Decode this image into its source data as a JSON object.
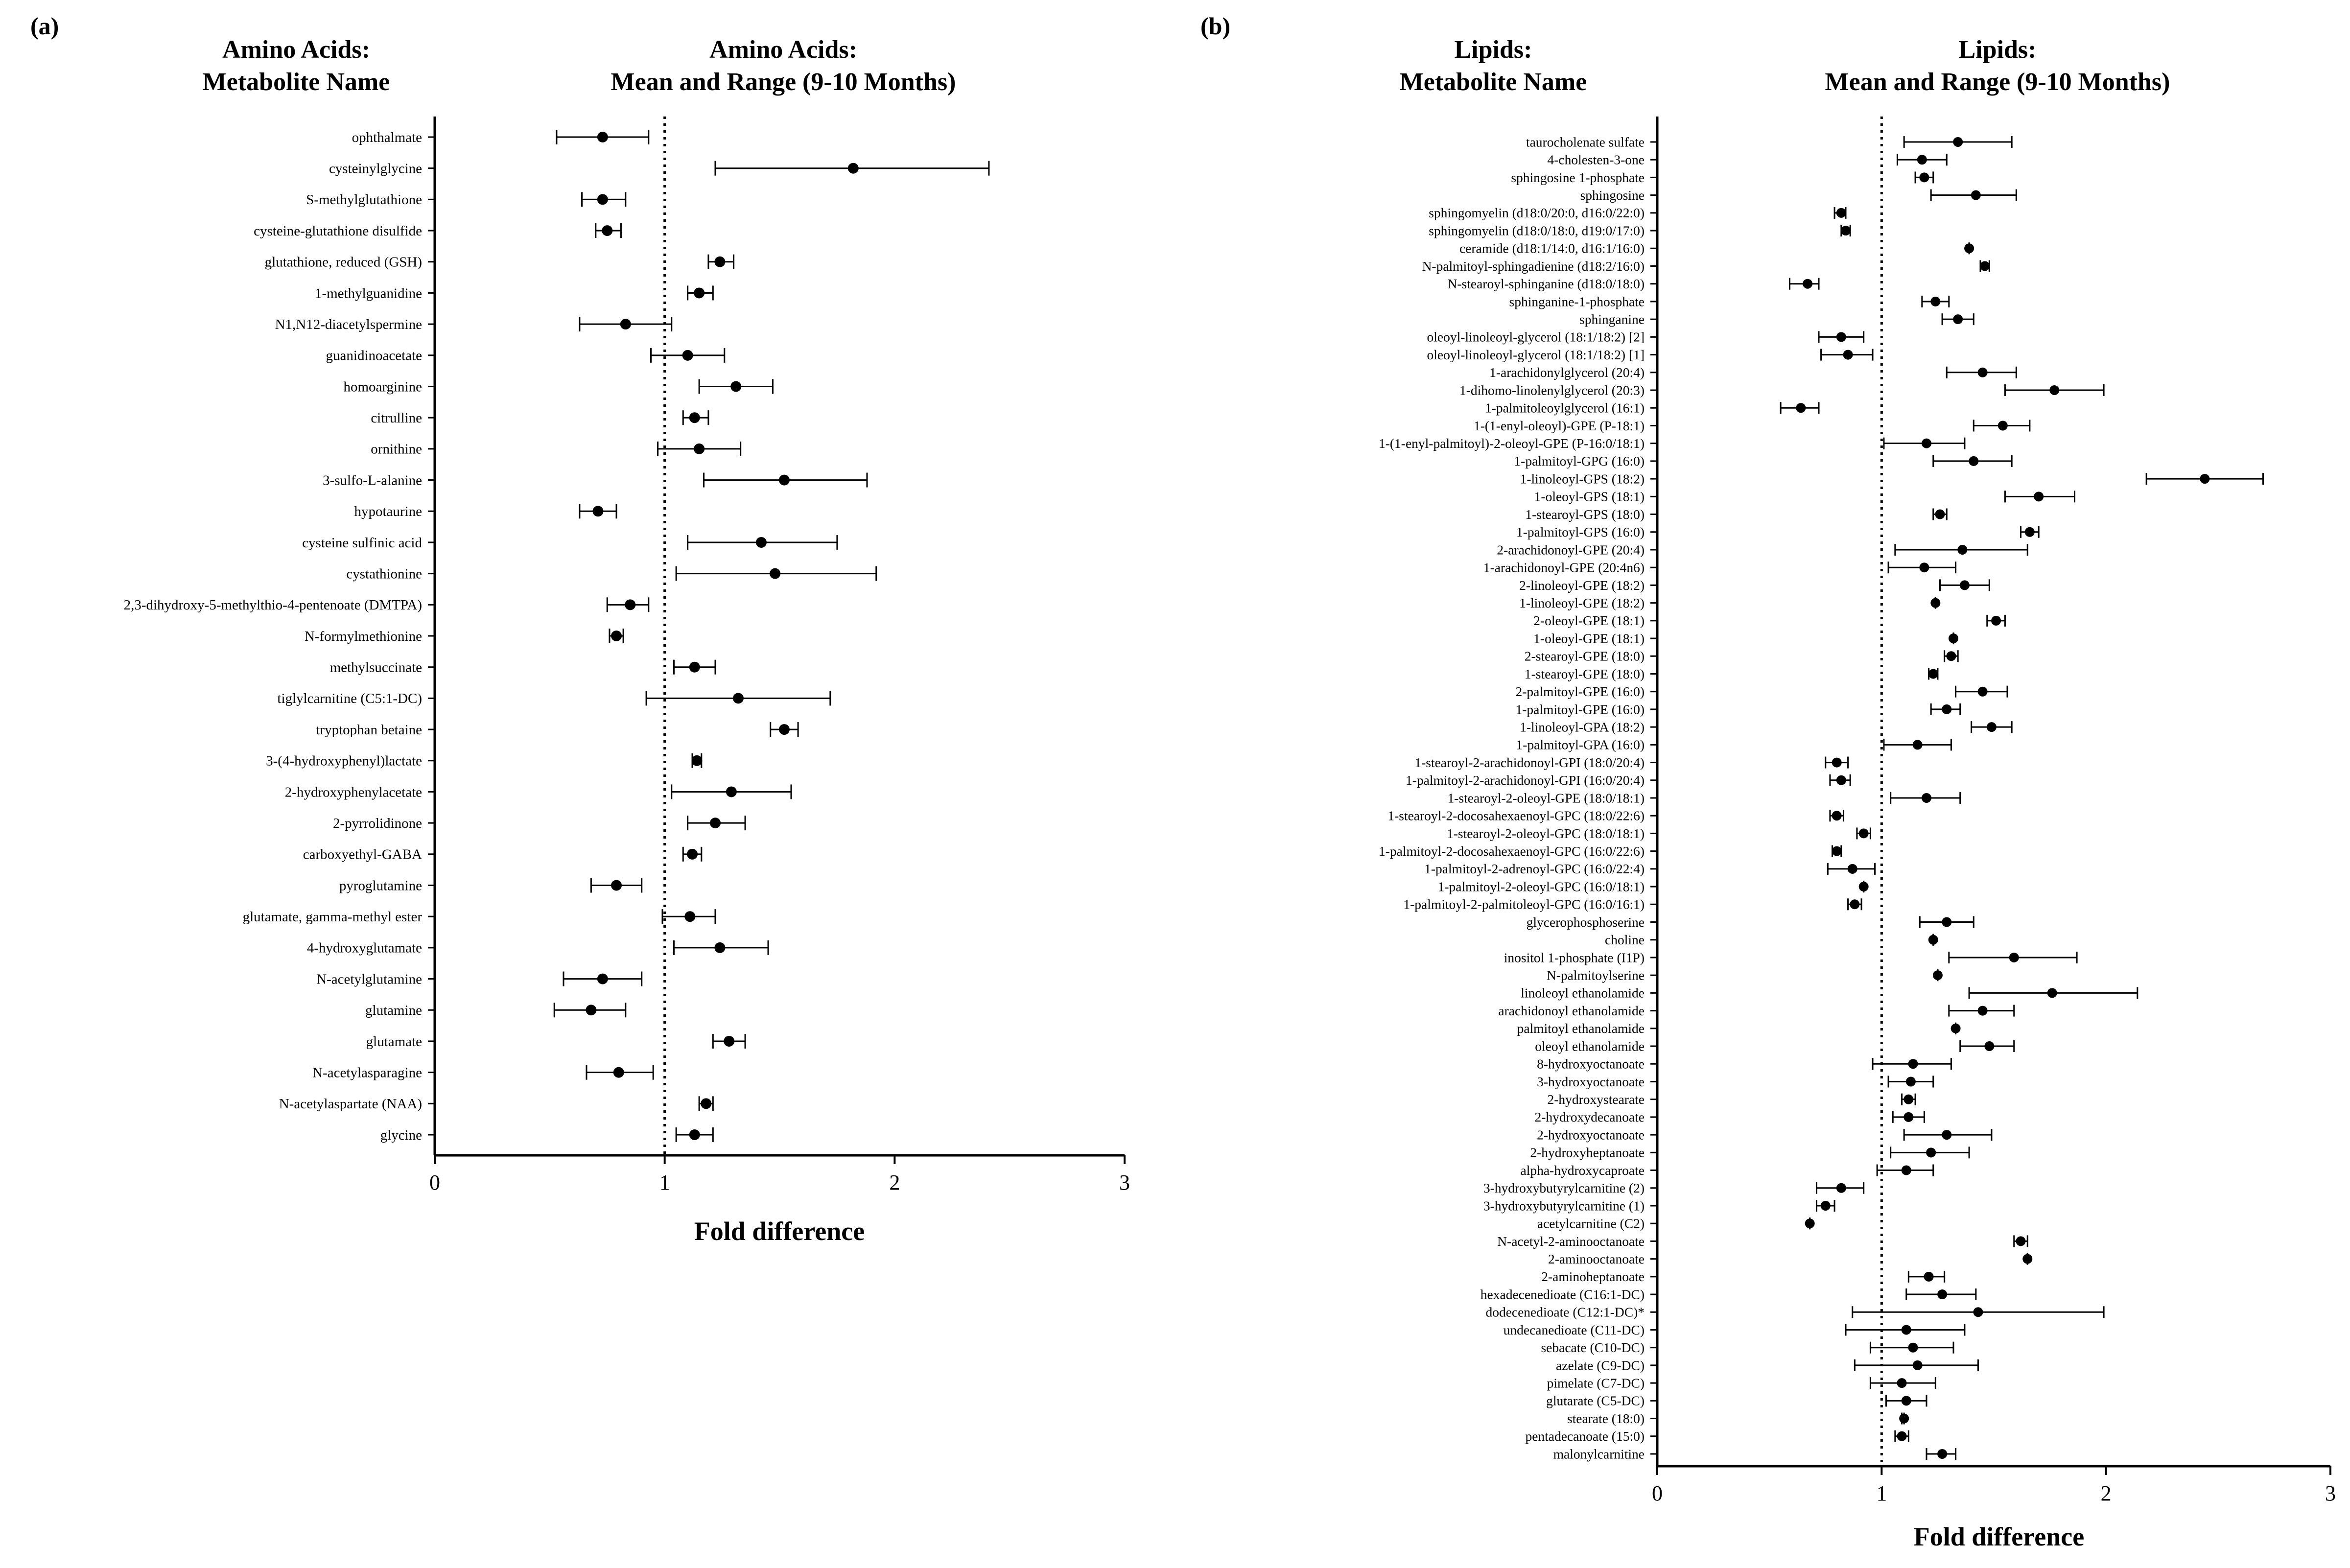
{
  "panels": {
    "a": {
      "label": "(a)",
      "header_names": [
        "Amino Acids:",
        "Metabolite Name"
      ],
      "header_mean": [
        "Amino Acids:",
        "Mean and Range (9-10 Months)"
      ]
    },
    "b": {
      "label": "(b)",
      "header_names": [
        "Lipids:",
        "Metabolite Name"
      ],
      "header_mean": [
        "Lipids:",
        "Mean and Range (9-10 Months)"
      ]
    }
  },
  "chart_data": [
    {
      "type": "scatter",
      "subtype": "forest-plot",
      "title": "Amino Acids: Mean and Range (9-10 Months)",
      "xlabel": "Fold difference",
      "ylabel": "Amino Acids: Metabolite Name",
      "xlim": [
        0,
        3
      ],
      "xticks": [
        "0",
        "1",
        "2",
        "3"
      ],
      "reference_line": 1,
      "categories": [
        "ophthalmate",
        "cysteinylglycine",
        "S-methylglutathione",
        "cysteine-glutathione disulfide",
        "glutathione, reduced (GSH)",
        "1-methylguanidine",
        "N1,N12-diacetylspermine",
        "guanidinoacetate",
        "homoarginine",
        "citrulline",
        "ornithine",
        "3-sulfo-L-alanine",
        "hypotaurine",
        "cysteine sulfinic acid",
        "cystathionine",
        "2,3-dihydroxy-5-methylthio-4-pentenoate (DMTPA)",
        "N-formylmethionine",
        "methylsuccinate",
        "tiglylcarnitine (C5:1-DC)",
        "tryptophan betaine",
        "3-(4-hydroxyphenyl)lactate",
        "2-hydroxyphenylacetate",
        "2-pyrrolidinone",
        "carboxyethyl-GABA",
        "pyroglutamine",
        "glutamate, gamma-methyl ester",
        "4-hydroxyglutamate",
        "N-acetylglutamine",
        "glutamine",
        "glutamate",
        "N-acetylasparagine",
        "N-acetylaspartate (NAA)",
        "glycine"
      ],
      "mean": [
        0.73,
        1.82,
        0.73,
        0.75,
        1.24,
        1.15,
        0.83,
        1.1,
        1.31,
        1.13,
        1.15,
        1.52,
        0.71,
        1.42,
        1.48,
        0.85,
        0.79,
        1.13,
        1.32,
        1.52,
        1.14,
        1.29,
        1.22,
        1.12,
        0.79,
        1.11,
        1.24,
        0.73,
        0.68,
        1.28,
        0.8,
        1.18,
        1.13
      ],
      "low": [
        0.53,
        1.22,
        0.64,
        0.7,
        1.19,
        1.1,
        0.63,
        0.94,
        1.15,
        1.08,
        0.97,
        1.17,
        0.63,
        1.1,
        1.05,
        0.75,
        0.76,
        1.04,
        0.92,
        1.46,
        1.12,
        1.03,
        1.1,
        1.08,
        0.68,
        0.99,
        1.04,
        0.56,
        0.52,
        1.21,
        0.66,
        1.15,
        1.05
      ],
      "high": [
        0.93,
        2.41,
        0.83,
        0.81,
        1.3,
        1.21,
        1.03,
        1.26,
        1.47,
        1.19,
        1.33,
        1.88,
        0.79,
        1.75,
        1.92,
        0.93,
        0.82,
        1.22,
        1.72,
        1.58,
        1.16,
        1.55,
        1.35,
        1.16,
        0.9,
        1.22,
        1.45,
        0.9,
        0.83,
        1.35,
        0.95,
        1.21,
        1.21
      ]
    },
    {
      "type": "scatter",
      "subtype": "forest-plot",
      "title": "Lipids: Mean and Range (9-10 Months)",
      "xlabel": "Fold difference",
      "ylabel": "Lipids: Metabolite Name",
      "xlim": [
        0,
        3
      ],
      "xticks": [
        "0",
        "1",
        "2",
        "3"
      ],
      "reference_line": 1,
      "categories": [
        "taurocholenate sulfate",
        "4-cholesten-3-one",
        "sphingosine 1-phosphate",
        "sphingosine",
        "sphingomyelin (d18:0/20:0, d16:0/22:0)",
        "sphingomyelin (d18:0/18:0, d19:0/17:0)",
        "ceramide (d18:1/14:0, d16:1/16:0)",
        "N-palmitoyl-sphingadienine (d18:2/16:0)",
        "N-stearoyl-sphinganine (d18:0/18:0)",
        "sphinganine-1-phosphate",
        "sphinganine",
        "oleoyl-linoleoyl-glycerol (18:1/18:2) [2]",
        "oleoyl-linoleoyl-glycerol (18:1/18:2) [1]",
        "1-arachidonylglycerol (20:4)",
        "1-dihomo-linolenylglycerol (20:3)",
        "1-palmitoleoylglycerol (16:1)",
        "1-(1-enyl-oleoyl)-GPE (P-18:1)",
        "1-(1-enyl-palmitoyl)-2-oleoyl-GPE (P-16:0/18:1)",
        "1-palmitoyl-GPG (16:0)",
        "1-linoleoyl-GPS (18:2)",
        "1-oleoyl-GPS (18:1)",
        "1-stearoyl-GPS (18:0)",
        "1-palmitoyl-GPS (16:0)",
        "2-arachidonoyl-GPE (20:4)",
        "1-arachidonoyl-GPE (20:4n6)",
        "2-linoleoyl-GPE (18:2)",
        "1-linoleoyl-GPE (18:2)",
        "2-oleoyl-GPE (18:1)",
        "1-oleoyl-GPE (18:1)",
        "2-stearoyl-GPE (18:0)",
        "1-stearoyl-GPE (18:0)",
        "2-palmitoyl-GPE (16:0)",
        "1-palmitoyl-GPE (16:0)",
        "1-linoleoyl-GPA (18:2)",
        "1-palmitoyl-GPA (16:0)",
        "1-stearoyl-2-arachidonoyl-GPI (18:0/20:4)",
        "1-palmitoyl-2-arachidonoyl-GPI (16:0/20:4)",
        "1-stearoyl-2-oleoyl-GPE (18:0/18:1)",
        "1-stearoyl-2-docosahexaenoyl-GPC (18:0/22:6)",
        "1-stearoyl-2-oleoyl-GPC (18:0/18:1)",
        "1-palmitoyl-2-docosahexaenoyl-GPC (16:0/22:6)",
        "1-palmitoyl-2-adrenoyl-GPC (16:0/22:4)",
        "1-palmitoyl-2-oleoyl-GPC (16:0/18:1)",
        "1-palmitoyl-2-palmitoleoyl-GPC (16:0/16:1)",
        "glycerophosphoserine",
        "choline",
        "inositol 1-phosphate (I1P)",
        "N-palmitoylserine",
        "linoleoyl ethanolamide",
        "arachidonoyl ethanolamide",
        "palmitoyl ethanolamide",
        "oleoyl ethanolamide",
        "8-hydroxyoctanoate",
        "3-hydroxyoctanoate",
        "2-hydroxystearate",
        "2-hydroxydecanoate",
        "2-hydroxyoctanoate",
        "2-hydroxyheptanoate",
        "alpha-hydroxycaproate",
        "3-hydroxybutyrylcarnitine (2)",
        "3-hydroxybutyrylcarnitine (1)",
        "acetylcarnitine (C2)",
        "N-acetyl-2-aminooctanoate",
        "2-aminooctanoate",
        "2-aminoheptanoate",
        "hexadecenedioate (C16:1-DC)",
        "dodecenedioate (C12:1-DC)*",
        "undecanedioate (C11-DC)",
        "sebacate (C10-DC)",
        "azelate (C9-DC)",
        "pimelate (C7-DC)",
        "glutarate (C5-DC)",
        "stearate (18:0)",
        "pentadecanoate (15:0)",
        "malonylcarnitine"
      ],
      "mean": [
        1.34,
        1.18,
        1.19,
        1.42,
        0.82,
        0.84,
        1.39,
        1.46,
        0.67,
        1.24,
        1.34,
        0.82,
        0.85,
        1.45,
        1.77,
        0.64,
        1.54,
        1.2,
        1.41,
        2.44,
        1.7,
        1.26,
        1.66,
        1.36,
        1.19,
        1.37,
        1.24,
        1.51,
        1.32,
        1.31,
        1.23,
        1.45,
        1.29,
        1.49,
        1.16,
        0.8,
        0.82,
        1.2,
        0.8,
        0.92,
        0.8,
        0.87,
        0.92,
        0.88,
        1.29,
        1.23,
        1.59,
        1.25,
        1.76,
        1.45,
        1.33,
        1.48,
        1.14,
        1.13,
        1.12,
        1.12,
        1.29,
        1.22,
        1.11,
        0.82,
        0.75,
        0.68,
        1.62,
        1.65,
        1.21,
        1.27,
        1.43,
        1.11,
        1.14,
        1.16,
        1.09,
        1.11,
        1.1,
        1.09,
        1.27
      ],
      "low": [
        1.1,
        1.07,
        1.15,
        1.22,
        0.79,
        0.82,
        1.39,
        1.44,
        0.59,
        1.18,
        1.27,
        0.72,
        0.73,
        1.29,
        1.55,
        0.55,
        1.41,
        1.01,
        1.23,
        2.18,
        1.55,
        1.23,
        1.62,
        1.06,
        1.03,
        1.26,
        1.24,
        1.47,
        1.32,
        1.28,
        1.21,
        1.33,
        1.22,
        1.4,
        1.01,
        0.75,
        0.77,
        1.04,
        0.77,
        0.89,
        0.78,
        0.76,
        0.92,
        0.85,
        1.17,
        1.23,
        1.3,
        1.25,
        1.39,
        1.3,
        1.33,
        1.35,
        0.96,
        1.03,
        1.09,
        1.05,
        1.1,
        1.04,
        0.98,
        0.71,
        0.71,
        0.68,
        1.59,
        1.65,
        1.12,
        1.11,
        0.87,
        0.84,
        0.95,
        0.88,
        0.95,
        1.02,
        1.09,
        1.06,
        1.2
      ],
      "high": [
        1.58,
        1.29,
        1.23,
        1.6,
        0.84,
        0.86,
        1.39,
        1.48,
        0.72,
        1.3,
        1.41,
        0.92,
        0.96,
        1.6,
        1.99,
        0.72,
        1.66,
        1.37,
        1.58,
        2.7,
        1.86,
        1.29,
        1.7,
        1.65,
        1.33,
        1.48,
        1.24,
        1.55,
        1.32,
        1.34,
        1.25,
        1.56,
        1.35,
        1.58,
        1.31,
        0.85,
        0.86,
        1.35,
        0.83,
        0.95,
        0.82,
        0.97,
        0.92,
        0.91,
        1.41,
        1.23,
        1.87,
        1.25,
        2.14,
        1.59,
        1.33,
        1.59,
        1.31,
        1.23,
        1.15,
        1.19,
        1.49,
        1.39,
        1.23,
        0.92,
        0.79,
        0.68,
        1.65,
        1.65,
        1.28,
        1.42,
        1.99,
        1.37,
        1.32,
        1.43,
        1.24,
        1.2,
        1.1,
        1.12,
        1.33
      ]
    }
  ]
}
